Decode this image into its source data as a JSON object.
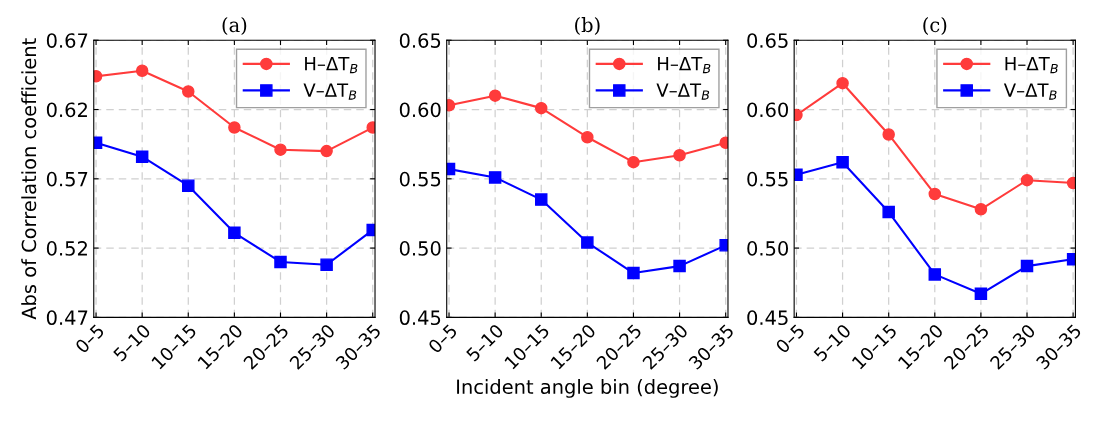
{
  "chart_data": [
    {
      "type": "line",
      "title": "(a)",
      "ylabel": "Abs of Correlation coefficient",
      "categories": [
        "0–5",
        "5–10",
        "10–15",
        "15–20",
        "20–25",
        "25–30",
        "30–35"
      ],
      "ylim": [
        0.47,
        0.67
      ],
      "yticks": [
        0.47,
        0.52,
        0.57,
        0.62,
        0.67
      ],
      "grid": true,
      "legend": "top right",
      "series": [
        {
          "name": "H–ΔT$_{B}$",
          "color": "#ff3b3b",
          "marker": "circle",
          "values": [
            0.644,
            0.648,
            0.633,
            0.607,
            0.591,
            0.59,
            0.607
          ]
        },
        {
          "name": "V–ΔT$_{B}$",
          "color": "#0000ff",
          "marker": "square",
          "values": [
            0.596,
            0.586,
            0.565,
            0.531,
            0.51,
            0.508,
            0.533
          ]
        }
      ]
    },
    {
      "type": "line",
      "title": "(b)",
      "xlabel": "Incident angle bin (degree)",
      "categories": [
        "0–5",
        "5–10",
        "10–15",
        "15–20",
        "20–25",
        "25–30",
        "30–35"
      ],
      "ylim": [
        0.45,
        0.65
      ],
      "yticks": [
        {
          "value": 0.45,
          "label": "0.45"
        },
        {
          "value": 0.5,
          "label": "0.50"
        },
        {
          "value": 0.55,
          "label": "0.55"
        },
        {
          "value": 0.6,
          "label": "0.60"
        },
        {
          "value": 0.65,
          "label": "0.65"
        }
      ],
      "grid": true,
      "legend": "top right",
      "series": [
        {
          "name": "H–ΔT$_{B}$",
          "color": "#ff3b3b",
          "marker": "circle",
          "values": [
            0.603,
            0.61,
            0.601,
            0.58,
            0.562,
            0.567,
            0.576
          ]
        },
        {
          "name": "V–ΔT$_{B}$",
          "color": "#0000ff",
          "marker": "square",
          "values": [
            0.557,
            0.551,
            0.535,
            0.504,
            0.482,
            0.487,
            0.502
          ]
        }
      ]
    },
    {
      "type": "line",
      "title": "(c)",
      "categories": [
        "0–5",
        "5–10",
        "10–15",
        "15–20",
        "20–25",
        "25–30",
        "30–35"
      ],
      "ylim": [
        0.45,
        0.65
      ],
      "yticks": [
        {
          "value": 0.45,
          "label": "0.45"
        },
        {
          "value": 0.5,
          "label": "0.50"
        },
        {
          "value": 0.55,
          "label": "0.55"
        },
        {
          "value": 0.6,
          "label": "0.60"
        },
        {
          "value": 0.65,
          "label": "0.65"
        }
      ],
      "grid": true,
      "legend": "top right",
      "series": [
        {
          "name": "H–ΔT$_{B}$",
          "color": "#ff3b3b",
          "marker": "circle",
          "values": [
            0.596,
            0.619,
            0.582,
            0.539,
            0.528,
            0.549,
            0.547
          ]
        },
        {
          "name": "V–ΔT$_{B}$",
          "color": "#0000ff",
          "marker": "square",
          "values": [
            0.553,
            0.562,
            0.526,
            0.481,
            0.467,
            0.487,
            0.492
          ]
        }
      ]
    }
  ]
}
